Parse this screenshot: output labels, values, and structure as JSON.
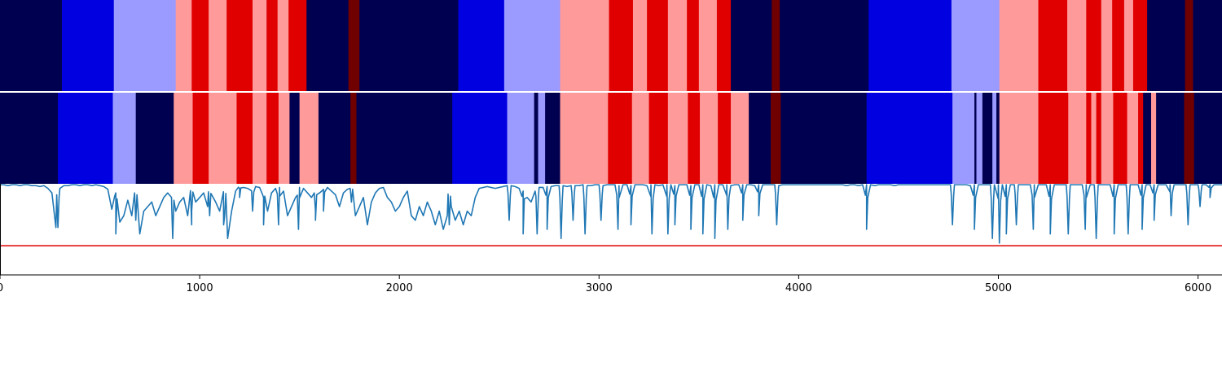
{
  "chart_data": [
    {
      "type": "heatmap",
      "panel": "top-segmentation",
      "palette": {
        "0": "#000050",
        "1": "#0000e0",
        "2": "#9a9aff",
        "3": "#ff9a9a",
        "4": "#e00000",
        "5": "#700000"
      },
      "segments": [
        [
          0,
          310,
          0
        ],
        [
          310,
          570,
          1
        ],
        [
          570,
          880,
          2
        ],
        [
          880,
          960,
          3
        ],
        [
          960,
          1045,
          4
        ],
        [
          1045,
          1135,
          3
        ],
        [
          1135,
          1265,
          4
        ],
        [
          1265,
          1335,
          3
        ],
        [
          1335,
          1390,
          4
        ],
        [
          1390,
          1445,
          3
        ],
        [
          1445,
          1535,
          4
        ],
        [
          1535,
          1745,
          0
        ],
        [
          1745,
          1800,
          5
        ],
        [
          1800,
          2295,
          0
        ],
        [
          2295,
          2525,
          1
        ],
        [
          2525,
          2805,
          2
        ],
        [
          2805,
          3050,
          3
        ],
        [
          3050,
          3170,
          4
        ],
        [
          3170,
          3240,
          3
        ],
        [
          3240,
          3345,
          4
        ],
        [
          3345,
          3440,
          3
        ],
        [
          3440,
          3500,
          4
        ],
        [
          3500,
          3590,
          3
        ],
        [
          3590,
          3660,
          4
        ],
        [
          3660,
          3865,
          0
        ],
        [
          3865,
          3905,
          5
        ],
        [
          3905,
          4350,
          0
        ],
        [
          4350,
          4765,
          1
        ],
        [
          4765,
          5005,
          2
        ],
        [
          5005,
          5200,
          3
        ],
        [
          5200,
          5345,
          4
        ],
        [
          5345,
          5440,
          3
        ],
        [
          5440,
          5515,
          4
        ],
        [
          5515,
          5570,
          3
        ],
        [
          5570,
          5630,
          4
        ],
        [
          5630,
          5675,
          3
        ],
        [
          5675,
          5745,
          4
        ],
        [
          5745,
          5935,
          0
        ],
        [
          5935,
          5975,
          5
        ],
        [
          5975,
          6120,
          0
        ]
      ]
    },
    {
      "type": "heatmap",
      "panel": "middle-segmentation",
      "segments": [
        [
          0,
          290,
          0
        ],
        [
          290,
          565,
          1
        ],
        [
          565,
          680,
          2
        ],
        [
          680,
          870,
          0
        ],
        [
          870,
          965,
          3
        ],
        [
          965,
          1045,
          4
        ],
        [
          1045,
          1185,
          3
        ],
        [
          1185,
          1265,
          4
        ],
        [
          1265,
          1335,
          3
        ],
        [
          1335,
          1395,
          4
        ],
        [
          1395,
          1450,
          3
        ],
        [
          1450,
          1500,
          0
        ],
        [
          1500,
          1510,
          3
        ],
        [
          1510,
          1595,
          3
        ],
        [
          1595,
          1755,
          0
        ],
        [
          1755,
          1785,
          5
        ],
        [
          1785,
          2265,
          0
        ],
        [
          2265,
          2540,
          1
        ],
        [
          2540,
          2675,
          2
        ],
        [
          2675,
          2695,
          0
        ],
        [
          2695,
          2730,
          2
        ],
        [
          2730,
          2805,
          0
        ],
        [
          2805,
          3045,
          3
        ],
        [
          3045,
          3165,
          4
        ],
        [
          3165,
          3250,
          3
        ],
        [
          3250,
          3345,
          4
        ],
        [
          3345,
          3445,
          3
        ],
        [
          3445,
          3505,
          4
        ],
        [
          3505,
          3595,
          3
        ],
        [
          3595,
          3660,
          4
        ],
        [
          3660,
          3750,
          3
        ],
        [
          3750,
          3860,
          0
        ],
        [
          3860,
          3910,
          5
        ],
        [
          3910,
          4340,
          0
        ],
        [
          4340,
          4770,
          1
        ],
        [
          4770,
          4880,
          2
        ],
        [
          4880,
          4890,
          0
        ],
        [
          4890,
          4920,
          2
        ],
        [
          4920,
          4970,
          0
        ],
        [
          4970,
          4990,
          2
        ],
        [
          4990,
          5005,
          0
        ],
        [
          5005,
          5200,
          3
        ],
        [
          5200,
          5350,
          4
        ],
        [
          5350,
          5440,
          3
        ],
        [
          5440,
          5465,
          4
        ],
        [
          5465,
          5490,
          3
        ],
        [
          5490,
          5515,
          4
        ],
        [
          5515,
          5575,
          3
        ],
        [
          5575,
          5645,
          4
        ],
        [
          5645,
          5700,
          3
        ],
        [
          5700,
          5725,
          4
        ],
        [
          5725,
          5765,
          0
        ],
        [
          5765,
          5790,
          3
        ],
        [
          5790,
          5930,
          0
        ],
        [
          5930,
          5980,
          5
        ],
        [
          5980,
          6120,
          0
        ]
      ]
    },
    {
      "type": "line",
      "panel": "bottom-signal",
      "xlim": [
        0,
        6120
      ],
      "ylim": [
        -1.0,
        0.0
      ],
      "threshold": -0.68,
      "line_color": "#1f77b4",
      "threshold_color": "#e00000",
      "series": [
        {
          "values_sampled_every_x": 20,
          "y": [
            -0.01,
            -0.01,
            -0.02,
            -0.01,
            -0.01,
            -0.02,
            -0.01,
            -0.01,
            -0.02,
            -0.02,
            -0.03,
            -0.02,
            -0.05,
            -0.1,
            -0.48,
            -0.05,
            -0.02,
            -0.02,
            -0.01,
            -0.01,
            -0.02,
            -0.01,
            -0.01,
            -0.02,
            -0.01,
            -0.02,
            -0.03,
            -0.06,
            -0.28,
            -0.1,
            -0.42,
            -0.35,
            -0.18,
            -0.35,
            -0.4,
            -0.55,
            -0.3,
            -0.25,
            -0.2,
            -0.35,
            -0.25,
            -0.15,
            -0.1,
            -0.25,
            -0.3,
            -0.2,
            -0.15,
            -0.35,
            -0.45,
            -0.2,
            -0.15,
            -0.1,
            -0.25,
            -0.12,
            -0.2,
            -0.3,
            -0.45,
            -0.6,
            -0.3,
            -0.08,
            -0.05,
            -0.04,
            -0.05,
            -0.08,
            -0.03,
            -0.04,
            -0.15,
            -0.3,
            -0.1,
            -0.05,
            -0.04,
            -0.08,
            -0.35,
            -0.25,
            -0.15,
            -0.04,
            -0.05,
            -0.1,
            -0.15,
            -0.3,
            -0.1,
            -0.06,
            -0.04,
            -0.08,
            -0.12,
            -0.25,
            -0.1,
            -0.06,
            -0.2,
            -0.35,
            -0.25,
            -0.15,
            -0.45,
            -0.2,
            -0.1,
            -0.05,
            -0.04,
            -0.15,
            -0.2,
            -0.3,
            -0.25,
            -0.15,
            -0.08,
            -0.35,
            -0.4,
            -0.25,
            -0.35,
            -0.2,
            -0.3,
            -0.45,
            -0.3,
            -0.5,
            -0.35,
            -0.25,
            -0.4,
            -0.3,
            -0.45,
            -0.3,
            -0.35,
            -0.15,
            -0.05,
            -0.04,
            -0.03,
            -0.04,
            -0.05,
            -0.04,
            -0.03,
            -0.02,
            -0.02,
            -0.03,
            -0.05,
            -0.08,
            -0.15,
            -0.2,
            -0.08,
            -0.04,
            -0.04,
            -0.03,
            -0.03,
            -0.02,
            -0.02,
            -0.02,
            -0.03,
            -0.02,
            -0.02,
            -0.02,
            -0.01,
            -0.02,
            -0.02,
            -0.01,
            -0.01,
            -0.02,
            -0.01,
            -0.01,
            -0.01,
            -0.02,
            -0.01,
            -0.01,
            -0.02,
            -0.01,
            -0.01,
            -0.01,
            -0.02,
            -0.01,
            -0.01,
            -0.02,
            -0.01,
            -0.01,
            -0.01,
            -0.02,
            -0.01,
            -0.01,
            -0.01,
            -0.02,
            -0.01,
            -0.01,
            -0.01,
            -0.01,
            -0.02,
            -0.01,
            -0.01,
            -0.01,
            -0.01,
            -0.02,
            -0.01,
            -0.01,
            -0.01,
            -0.01,
            -0.01,
            -0.02,
            -0.01,
            -0.01,
            -0.01,
            -0.01,
            -0.01,
            -0.02,
            -0.01,
            -0.01,
            -0.01,
            -0.01,
            -0.01,
            -0.01,
            -0.01,
            -0.01,
            -0.01,
            -0.01,
            -0.01,
            -0.01,
            -0.01,
            -0.01,
            -0.01,
            -0.01,
            -0.02,
            -0.01,
            -0.01,
            -0.02,
            -0.01,
            -0.01,
            -0.01,
            -0.02,
            -0.01,
            -0.01,
            -0.01,
            -0.01,
            -0.02,
            -0.01,
            -0.01,
            -0.01,
            -0.01,
            -0.01,
            -0.01,
            -0.01,
            -0.01,
            -0.01,
            -0.01,
            -0.01,
            -0.01,
            -0.01,
            -0.01,
            -0.01,
            -0.01,
            -0.01,
            -0.01,
            -0.02,
            -0.01,
            -0.01,
            -0.01,
            -0.01,
            -0.01,
            -0.01,
            -0.01,
            -0.01,
            -0.01,
            -0.01,
            -0.01,
            -0.01,
            -0.01,
            -0.01,
            -0.01,
            -0.01,
            -0.01,
            -0.01,
            -0.01,
            -0.01,
            -0.01,
            -0.01,
            -0.01,
            -0.01,
            -0.01,
            -0.01,
            -0.01,
            -0.01,
            -0.01,
            -0.01,
            -0.01,
            -0.01,
            -0.01,
            -0.01,
            -0.01,
            -0.01,
            -0.01,
            -0.01,
            -0.01,
            -0.01,
            -0.01,
            -0.01,
            -0.01,
            -0.01,
            -0.01,
            -0.01,
            -0.01,
            -0.01,
            -0.01,
            -0.01,
            -0.01,
            -0.01,
            -0.01,
            -0.01,
            -0.01,
            -0.01,
            -0.01,
            -0.01,
            -0.01,
            -0.01,
            -0.01,
            -0.01,
            -0.01,
            -0.01,
            -0.01,
            -0.01,
            -0.01,
            -0.01,
            -0.01,
            -0.01,
            -0.01,
            -0.01,
            -0.01,
            -0.01,
            -0.01,
            -0.01
          ],
          "peaks": [
            [
              290,
              -0.48
            ],
            [
              580,
              -0.55
            ],
            [
              680,
              -0.4
            ],
            [
              865,
              -0.6
            ],
            [
              960,
              -0.3
            ],
            [
              1050,
              -0.35
            ],
            [
              1125,
              -0.35
            ],
            [
              1200,
              -0.15
            ],
            [
              1265,
              -0.3
            ],
            [
              1320,
              -0.45
            ],
            [
              1395,
              -0.45
            ],
            [
              1495,
              -0.5
            ],
            [
              1580,
              -0.4
            ],
            [
              1620,
              -0.3
            ],
            [
              1760,
              -0.2
            ],
            [
              2250,
              -0.45
            ],
            [
              2550,
              -0.4
            ],
            [
              2620,
              -0.55
            ],
            [
              2690,
              -0.55
            ],
            [
              2740,
              -0.5
            ],
            [
              2810,
              -0.6
            ],
            [
              2870,
              -0.4
            ],
            [
              2930,
              -0.55
            ],
            [
              3010,
              -0.4
            ],
            [
              3095,
              -0.5
            ],
            [
              3160,
              -0.45
            ],
            [
              3265,
              -0.55
            ],
            [
              3345,
              -0.55
            ],
            [
              3380,
              -0.45
            ],
            [
              3460,
              -0.5
            ],
            [
              3520,
              -0.55
            ],
            [
              3580,
              -0.6
            ],
            [
              3645,
              -0.5
            ],
            [
              3720,
              -0.4
            ],
            [
              3800,
              -0.35
            ],
            [
              3890,
              -0.45
            ],
            [
              4340,
              -0.5
            ],
            [
              4770,
              -0.45
            ],
            [
              4880,
              -0.5
            ],
            [
              4970,
              -0.6
            ],
            [
              5005,
              -0.65
            ],
            [
              5040,
              -0.55
            ],
            [
              5090,
              -0.45
            ],
            [
              5175,
              -0.5
            ],
            [
              5260,
              -0.55
            ],
            [
              5350,
              -0.55
            ],
            [
              5435,
              -0.5
            ],
            [
              5490,
              -0.6
            ],
            [
              5580,
              -0.55
            ],
            [
              5650,
              -0.55
            ],
            [
              5720,
              -0.5
            ],
            [
              5780,
              -0.4
            ],
            [
              5865,
              -0.35
            ],
            [
              5950,
              -0.45
            ],
            [
              6010,
              -0.25
            ],
            [
              6060,
              -0.15
            ]
          ]
        }
      ],
      "xticks": [
        0,
        1000,
        2000,
        3000,
        4000,
        5000,
        6000
      ],
      "xtick_labels": [
        "0",
        "1000",
        "2000",
        "3000",
        "4000",
        "5000",
        "6000"
      ],
      "title": "",
      "xlabel": "",
      "ylabel": ""
    }
  ]
}
